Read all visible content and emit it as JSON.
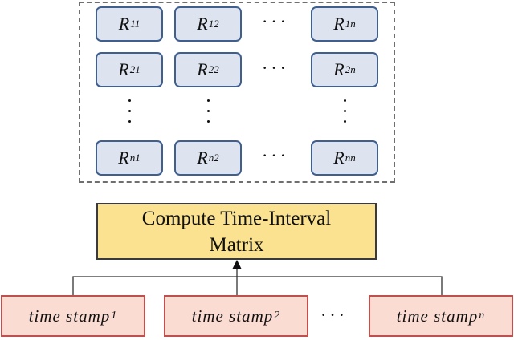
{
  "matrix": {
    "cells": [
      {
        "id": "r11",
        "base": "R",
        "sub": "11"
      },
      {
        "id": "r12",
        "base": "R",
        "sub": "12"
      },
      {
        "id": "r1n",
        "base": "R",
        "sub": "1n"
      },
      {
        "id": "r21",
        "base": "R",
        "sub": "21"
      },
      {
        "id": "r22",
        "base": "R",
        "sub": "22"
      },
      {
        "id": "r2n",
        "base": "R",
        "sub": "2n"
      },
      {
        "id": "rn1",
        "base": "R",
        "sub": "n1"
      },
      {
        "id": "rn2",
        "base": "R",
        "sub": "n2"
      },
      {
        "id": "rnn",
        "base": "R",
        "sub": "nn"
      }
    ],
    "ellipsis": "···"
  },
  "compute": {
    "label": "Compute Time-Interval Matrix"
  },
  "stamps": [
    {
      "text": "time stamp",
      "sub": "1"
    },
    {
      "text": "time stamp",
      "sub": "2"
    },
    {
      "text": "time stamp",
      "sub": "n"
    }
  ],
  "stamps_ellipsis": "···",
  "colors": {
    "cell_border": "#3f5f8f",
    "cell_fill": "#dde3ef",
    "compute_fill": "#fbe290",
    "stamp_border": "#c0504d",
    "stamp_fill": "#fbdcd3"
  }
}
